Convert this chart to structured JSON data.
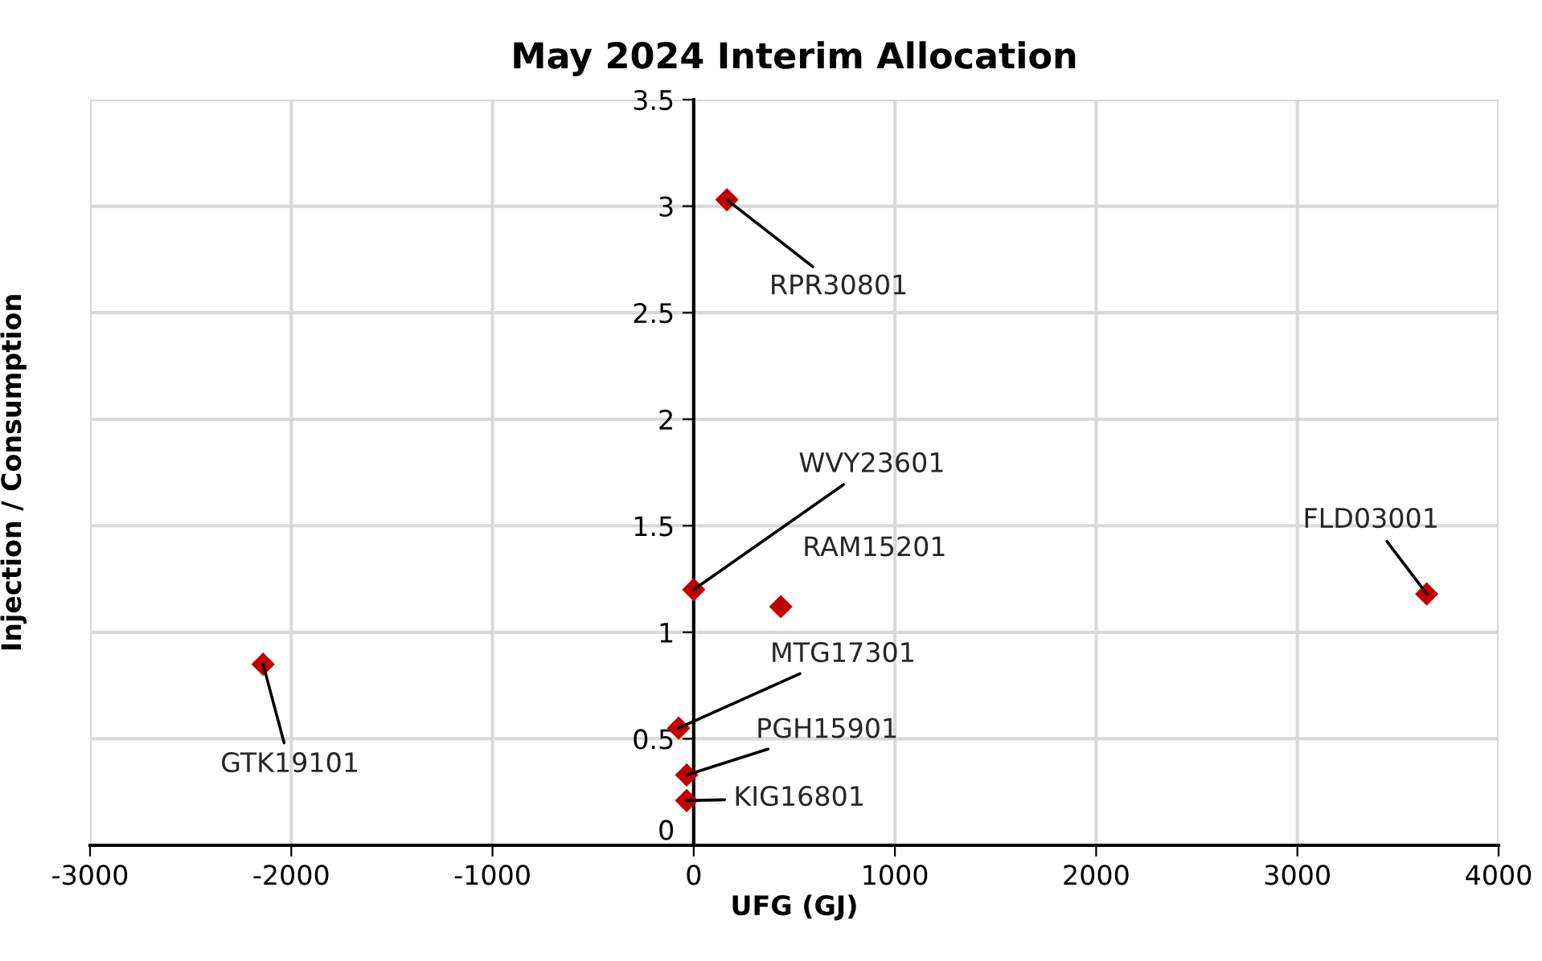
{
  "chart_data": {
    "type": "scatter",
    "title": "May 2024 Interim Allocation",
    "xlabel": "UFG (GJ)",
    "ylabel": "Injection / Consumption",
    "x": [
      165,
      0,
      433,
      3643,
      -2140,
      -75,
      -35,
      -35
    ],
    "series": [
      {
        "color": "#c00000",
        "values": [
          3.03,
          1.2,
          1.12,
          1.18,
          0.85,
          0.55,
          0.33,
          0.21
        ]
      }
    ],
    "annotations": [
      {
        "text": "RPR30801",
        "x": 165,
        "y": 3.03
      },
      {
        "text": "WVY23601",
        "x": 0,
        "y": 1.2
      },
      {
        "text": "RAM15201",
        "x": 433,
        "y": 1.12
      },
      {
        "text": "FLD03001",
        "x": 3643,
        "y": 1.18
      },
      {
        "text": "GTK19101",
        "x": -2140,
        "y": 0.85
      },
      {
        "text": "MTG17301",
        "x": -75,
        "y": 0.55
      },
      {
        "text": "PGH15901",
        "x": -35,
        "y": 0.33
      },
      {
        "text": "KIG16801",
        "x": -35,
        "y": 0.21
      }
    ],
    "xlim": [
      -3000,
      4000
    ],
    "xticks": [
      -3000,
      -2000,
      -1000,
      0,
      1000,
      2000,
      3000,
      4000
    ],
    "ylim": [
      0,
      3.5
    ],
    "yticks": [
      0,
      0.5,
      1,
      1.5,
      2,
      2.5,
      3,
      3.5
    ],
    "grid": true,
    "marker": "diamond",
    "legend": false
  }
}
